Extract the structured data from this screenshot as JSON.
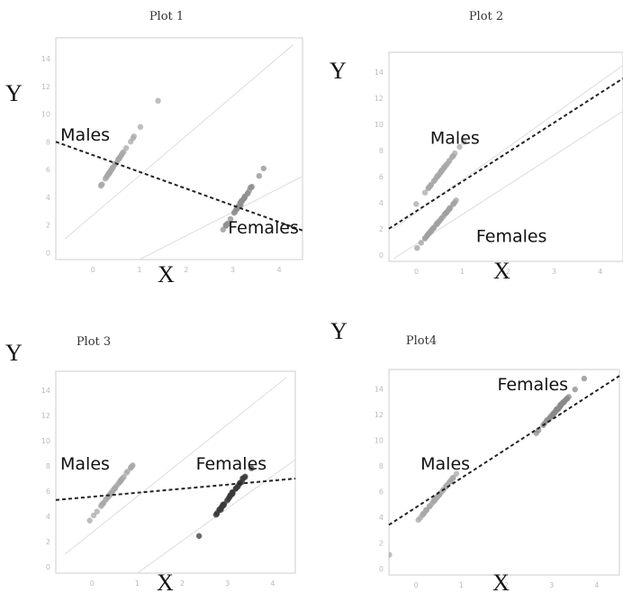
{
  "chart_data": [
    {
      "type": "scatter",
      "title": "Plot 1",
      "xlabel": "X",
      "ylabel": "Y",
      "xlim": [
        -0.8,
        4.5
      ],
      "ylim": [
        -0.5,
        15.5
      ],
      "xticks": [
        0,
        1,
        2,
        3,
        4
      ],
      "yticks": [
        0,
        2,
        4,
        6,
        8,
        10,
        12,
        14
      ],
      "groups": [
        {
          "label": "Males",
          "color": "#a8a8a8",
          "center": [
            0.5,
            6.5
          ],
          "spread": [
            0.45,
            1.4
          ],
          "count": 42
        },
        {
          "label": "Females",
          "color": "#8f8f8f",
          "center": [
            3.1,
            3.2
          ],
          "spread": [
            0.4,
            1.3
          ],
          "count": 42
        }
      ],
      "group_lines": [
        {
          "x": [
            -0.6,
            4.3
          ],
          "y": [
            1.0,
            15.0
          ]
        },
        {
          "x": [
            1.0,
            4.5
          ],
          "y": [
            -0.5,
            5.5
          ]
        }
      ],
      "fit_line": {
        "x": [
          -0.8,
          4.5
        ],
        "y": [
          8.0,
          1.6
        ]
      },
      "label_positions": [
        {
          "label": "Males",
          "x": -0.7,
          "y": 8.1
        },
        {
          "label": "Females",
          "x": 2.9,
          "y": 1.4
        }
      ]
    },
    {
      "type": "scatter",
      "title": "Plot 2",
      "xlabel": "X",
      "ylabel": "Y",
      "xlim": [
        -0.6,
        4.5
      ],
      "ylim": [
        -0.5,
        15.5
      ],
      "xticks": [
        0,
        1,
        2,
        3,
        4
      ],
      "yticks": [
        0,
        2,
        4,
        6,
        8,
        10,
        12,
        14
      ],
      "groups": [
        {
          "label": "Males",
          "color": "#a8a8a8",
          "center": [
            0.5,
            6.2
          ],
          "spread": [
            0.45,
            1.3
          ],
          "count": 42
        },
        {
          "label": "Females",
          "color": "#a0a0a0",
          "center": [
            0.5,
            2.6
          ],
          "spread": [
            0.45,
            1.2
          ],
          "count": 42
        }
      ],
      "group_lines": [
        {
          "x": [
            -0.5,
            4.5
          ],
          "y": [
            2.0,
            14.5
          ]
        },
        {
          "x": [
            -0.5,
            4.5
          ],
          "y": [
            -0.3,
            11.0
          ]
        }
      ],
      "fit_line": {
        "x": [
          -0.6,
          4.5
        ],
        "y": [
          2.0,
          13.5
        ]
      },
      "label_positions": [
        {
          "label": "Males",
          "x": 0.3,
          "y": 8.5
        },
        {
          "label": "Females",
          "x": 1.3,
          "y": 1.0
        }
      ]
    },
    {
      "type": "scatter",
      "title": "Plot 3",
      "xlabel": "X",
      "ylabel": "Y",
      "xlim": [
        -0.8,
        4.5
      ],
      "ylim": [
        -0.5,
        15.5
      ],
      "xticks": [
        0,
        1,
        2,
        3,
        4
      ],
      "yticks": [
        0,
        2,
        4,
        6,
        8,
        10,
        12,
        14
      ],
      "groups": [
        {
          "label": "Males",
          "color": "#a8a8a8",
          "center": [
            0.5,
            6.2
          ],
          "spread": [
            0.45,
            1.3
          ],
          "count": 42
        },
        {
          "label": "Females",
          "color": "#3a3a3a",
          "center": [
            3.1,
            5.8
          ],
          "spread": [
            0.4,
            1.2
          ],
          "count": 42
        }
      ],
      "group_lines": [
        {
          "x": [
            -0.6,
            4.3
          ],
          "y": [
            1.0,
            15.0
          ]
        },
        {
          "x": [
            1.0,
            4.5
          ],
          "y": [
            -0.5,
            8.5
          ]
        }
      ],
      "fit_line": {
        "x": [
          -0.8,
          4.5
        ],
        "y": [
          5.3,
          7.0
        ]
      },
      "label_positions": [
        {
          "label": "Males",
          "x": -0.7,
          "y": 7.7
        },
        {
          "label": "Females",
          "x": 2.3,
          "y": 7.7
        }
      ]
    },
    {
      "type": "scatter",
      "title": "Plot4",
      "xlabel": "X",
      "ylabel": "Y",
      "xlim": [
        -0.6,
        4.5
      ],
      "ylim": [
        -0.5,
        15.5
      ],
      "xticks": [
        0,
        1,
        2,
        3,
        4
      ],
      "yticks": [
        0,
        2,
        4,
        6,
        8,
        10,
        12,
        14
      ],
      "groups": [
        {
          "label": "Males",
          "color": "#a8a8a8",
          "center": [
            0.5,
            5.7
          ],
          "spread": [
            0.45,
            1.2
          ],
          "count": 42
        },
        {
          "label": "Females",
          "color": "#8a8a8a",
          "center": [
            3.1,
            12.3
          ],
          "spread": [
            0.4,
            1.0
          ],
          "count": 42
        }
      ],
      "group_lines": [],
      "fit_line": {
        "x": [
          -0.6,
          4.5
        ],
        "y": [
          3.4,
          15.0
        ]
      },
      "label_positions": [
        {
          "label": "Males",
          "x": 0.1,
          "y": 7.7
        },
        {
          "label": "Females",
          "x": 1.8,
          "y": 13.9
        }
      ]
    }
  ]
}
